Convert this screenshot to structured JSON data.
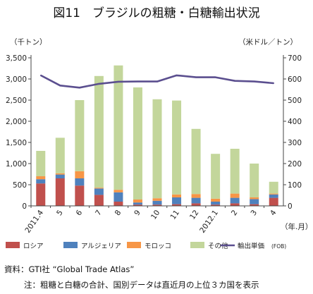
{
  "figure_title": "図11　ブラジルの粗糖・白糖輸出状況",
  "source_line": "資料：GTI社 “Global Trade Atlas”",
  "note_line": "注：粗糖と白糖の合計、国別データは直近月の上位３カ国を表示",
  "colors": {
    "russia": "#c0504d",
    "algeria": "#4f81bd",
    "morocco": "#f79646",
    "other": "#c3d69b",
    "price": "#5b4f8f",
    "axis": "#444444"
  },
  "chart_data": {
    "type": "bar",
    "stacked": true,
    "categories": [
      "2011.4",
      "5",
      "6",
      "7",
      "8",
      "9",
      "10",
      "11",
      "12",
      "2012.1",
      "2",
      "3",
      "4"
    ],
    "y_unit_left": "（千トン）",
    "y_unit_right": "（米ドル／トン）",
    "x_unit": "（年.月）",
    "ylim_left": [
      0,
      3500
    ],
    "ylim_right": [
      0,
      700
    ],
    "yticks_left": [
      "0",
      "500",
      "1,000",
      "1,500",
      "2,000",
      "2,500",
      "3,000",
      "3,500"
    ],
    "yticks_right": [
      "0",
      "100",
      "200",
      "300",
      "400",
      "500",
      "600",
      "700"
    ],
    "grid": false,
    "legend_position": "bottom",
    "series": [
      {
        "name": "ロシア",
        "color_key": "russia",
        "values": [
          530,
          650,
          480,
          260,
          100,
          30,
          30,
          40,
          60,
          30,
          60,
          40,
          190
        ]
      },
      {
        "name": "アルジェリア",
        "color_key": "algeria",
        "values": [
          100,
          90,
          170,
          150,
          220,
          50,
          90,
          160,
          130,
          70,
          130,
          120,
          80
        ]
      },
      {
        "name": "モロッコ",
        "color_key": "morocco",
        "values": [
          70,
          30,
          170,
          20,
          60,
          70,
          60,
          70,
          90,
          70,
          100,
          40,
          20
        ]
      },
      {
        "name": "その他",
        "color_key": "other",
        "values": [
          600,
          840,
          1680,
          2640,
          2940,
          2650,
          2340,
          2220,
          1540,
          1060,
          1060,
          800,
          280
        ]
      }
    ],
    "line_series": {
      "name": "輸出単価",
      "legend_suffix": "(FOB)",
      "axis": "right",
      "values": [
        617,
        569,
        559,
        577,
        587,
        588,
        588,
        617,
        608,
        608,
        591,
        588,
        580
      ]
    }
  }
}
